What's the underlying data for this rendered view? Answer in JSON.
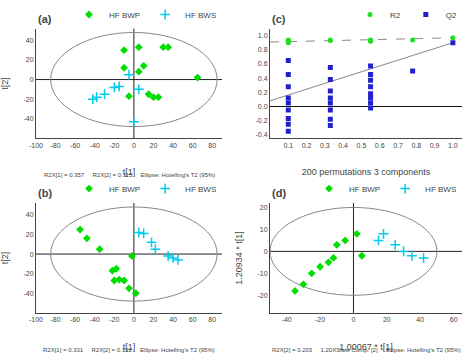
{
  "chart_data": [
    {
      "type": "scatter",
      "title": "(a)",
      "xlabel": "t[1]",
      "ylabel": "t[2]",
      "annotations": [
        "R2X[1] = 0.357     R2X[2] = 0.115     Ellipse: Hotelling's T2 (95%)"
      ],
      "xlim": [
        -100,
        90
      ],
      "ylim": [
        -60,
        52
      ],
      "xticks": [
        -100,
        -80,
        -60,
        -40,
        -20,
        0,
        20,
        40,
        60,
        80
      ],
      "yticks": [
        -40,
        -20,
        0,
        20,
        40
      ],
      "grid": false,
      "legend": "upper right",
      "series": [
        {
          "type": "ellipse",
          "center": [
            0,
            0
          ],
          "rx": 85,
          "ry": 48,
          "color": "#888888"
        },
        {
          "type": "hline",
          "values": [
            0
          ],
          "color": "#222222"
        },
        {
          "type": "vline",
          "values": [
            0
          ],
          "color": "#222222"
        },
        {
          "name": "HF BWP",
          "type": "scatter",
          "marker": "diamond",
          "color": "#00DD00",
          "x": [
            -10,
            5,
            30,
            35,
            5,
            10,
            15,
            20,
            25,
            65,
            -5,
            -10
          ],
          "values": [
            30,
            33,
            33,
            33,
            8,
            14,
            -15,
            -18,
            -18,
            2,
            -17,
            12
          ]
        },
        {
          "name": "HF BWS",
          "type": "scatter",
          "marker": "plus",
          "color": "#00CCEE",
          "x": [
            -15,
            -30,
            -38,
            -42,
            -20,
            5,
            -5,
            0
          ],
          "values": [
            -7,
            -15,
            -18,
            -20,
            -8,
            -10,
            5,
            -43
          ]
        }
      ]
    },
    {
      "type": "scatter",
      "title": "(b)",
      "xlabel": "t[1]",
      "ylabel": "t[2]",
      "annotations": [
        "R2X[1] = 0.331     R2X[2] = 0.132     Ellipse: Hotelling's T2 (95%)"
      ],
      "xlim": [
        -100,
        90
      ],
      "ylim": [
        -60,
        52
      ],
      "xticks": [
        -100,
        -80,
        -60,
        -40,
        -20,
        0,
        20,
        40,
        60,
        80
      ],
      "yticks": [
        -40,
        -20,
        0,
        20,
        40
      ],
      "grid": false,
      "legend": "upper right",
      "series": [
        {
          "type": "ellipse",
          "center": [
            0,
            0
          ],
          "rx": 85,
          "ry": 48,
          "color": "#888888"
        },
        {
          "type": "hline",
          "values": [
            0
          ],
          "color": "#222222"
        },
        {
          "type": "vline",
          "values": [
            0
          ],
          "color": "#222222"
        },
        {
          "name": "HF BWP",
          "type": "scatter",
          "marker": "diamond",
          "color": "#00DD00",
          "x": [
            -55,
            -48,
            -35,
            -22,
            -20,
            -15,
            -10,
            -5,
            2,
            -2,
            -18
          ],
          "values": [
            25,
            16,
            5,
            -17,
            -27,
            -26,
            -27,
            -35,
            -40,
            -2,
            -15
          ]
        },
        {
          "name": "HF BWS",
          "type": "scatter",
          "marker": "plus",
          "color": "#00CCEE",
          "x": [
            5,
            10,
            18,
            22,
            35,
            40,
            45
          ],
          "values": [
            22,
            21,
            12,
            5,
            -2,
            -4,
            -6
          ]
        }
      ]
    },
    {
      "type": "scatter",
      "title": "(c)",
      "xlabel": "200 permutations 3 components",
      "xlim": [
        0,
        1.05
      ],
      "ylim": [
        -0.45,
        1.1
      ],
      "xticks": [
        0.1,
        0.2,
        0.3,
        0.4,
        0.5,
        0.6,
        0.7,
        0.8,
        0.9,
        {
          "value": 1.0,
          "label": "1.0"
        }
      ],
      "yticks": [
        -0.4,
        -0.2,
        {
          "value": 0.0,
          "label": "0.0"
        },
        0.2,
        0.4,
        0.6,
        0.8,
        {
          "value": 1.0,
          "label": "1.0"
        }
      ],
      "grid": false,
      "legend": "upper right",
      "series": [
        {
          "type": "hline",
          "values": [
            0.0
          ],
          "color": "#111111"
        },
        {
          "type": "line",
          "line_style": "dashed",
          "color": "#888888",
          "x": [
            0.0,
            1.0
          ],
          "values": [
            0.91,
            0.97
          ]
        },
        {
          "type": "line",
          "line_style": "solid",
          "color": "#888888",
          "x": [
            0.0,
            1.0
          ],
          "values": [
            0.08,
            0.9
          ]
        },
        {
          "name": "R2",
          "type": "scatter",
          "marker": "circle",
          "color": "#22DD22",
          "x": [
            0.1,
            0.1,
            0.1,
            0.1,
            0.1,
            0.33,
            0.33,
            0.55,
            0.55,
            0.55,
            0.78,
            1.0
          ],
          "values": [
            0.94,
            0.93,
            0.92,
            0.91,
            0.9,
            0.93,
            0.94,
            0.94,
            0.93,
            0.92,
            0.94,
            0.97
          ]
        },
        {
          "name": "Q2",
          "type": "scatter",
          "marker": "square",
          "color": "#2222CC",
          "x": [
            0.1,
            0.1,
            0.1,
            0.1,
            0.1,
            0.1,
            0.1,
            0.1,
            0.1,
            0.33,
            0.33,
            0.33,
            0.33,
            0.33,
            0.33,
            0.33,
            0.33,
            0.55,
            0.55,
            0.55,
            0.55,
            0.55,
            0.55,
            0.55,
            0.55,
            0.78,
            1.0
          ],
          "values": [
            0.65,
            0.45,
            0.28,
            0.12,
            0.05,
            -0.05,
            -0.17,
            -0.25,
            -0.35,
            0.55,
            0.38,
            0.22,
            0.12,
            0.05,
            -0.05,
            -0.18,
            -0.27,
            0.57,
            0.45,
            0.37,
            0.28,
            0.18,
            0.12,
            0.05,
            -0.02,
            0.5,
            0.9
          ]
        }
      ]
    },
    {
      "type": "scatter",
      "title": "(d)",
      "xlabel": "1.00067 * t[1]",
      "ylabel": "1.20934 * t[1]",
      "annotations": [
        "R2X[2] = 0.203     1.20XSlate Comp. [2]     Ellipse: Hotelling's T2 (95%)"
      ],
      "xlim": [
        -50,
        65
      ],
      "ylim": [
        -28,
        22
      ],
      "xticks": [
        -40,
        -20,
        0,
        20,
        40,
        60
      ],
      "yticks": [
        -20,
        -10,
        0,
        10,
        20
      ],
      "grid": false,
      "legend": "upper right",
      "series": [
        {
          "type": "ellipse",
          "center": [
            0,
            0
          ],
          "rx": 50,
          "ry": 20,
          "color": "#888888"
        },
        {
          "type": "hline",
          "values": [
            0
          ],
          "color": "#222222"
        },
        {
          "type": "vline",
          "values": [
            0
          ],
          "color": "#222222"
        },
        {
          "name": "HF BWP",
          "type": "scatter",
          "marker": "diamond",
          "color": "#00DD00",
          "x": [
            -30,
            -25,
            -20,
            -15,
            -12,
            -5,
            -10,
            2,
            5,
            -35
          ],
          "values": [
            -15,
            -10,
            -7,
            -5,
            -3,
            5,
            3,
            8,
            -2,
            -18
          ]
        },
        {
          "name": "HF BWS",
          "type": "scatter",
          "marker": "plus",
          "color": "#00CCEE",
          "x": [
            15,
            18,
            25,
            30,
            35,
            42
          ],
          "values": [
            5,
            8,
            3,
            0,
            -2,
            -3
          ]
        }
      ]
    }
  ]
}
